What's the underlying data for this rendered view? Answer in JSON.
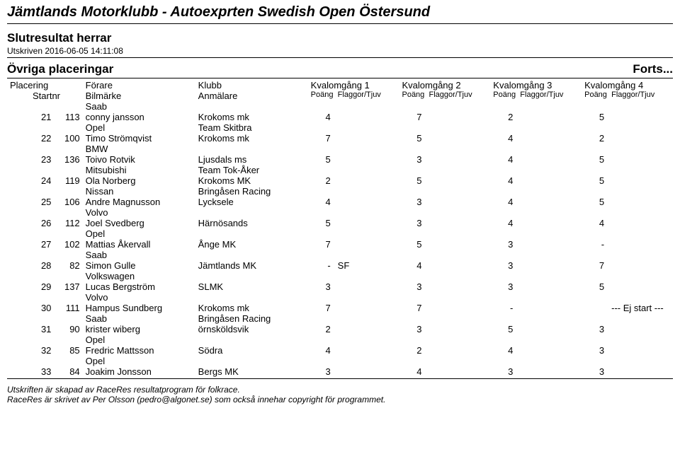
{
  "header": {
    "title": "Jämtlands Motorklubb - Autoexprten Swedish Open Östersund",
    "subtitle": "Slutresultat   herrar",
    "printed": "Utskriven 2016-06-05 14:11:08",
    "section": "Övriga placeringar",
    "forts": "Forts..."
  },
  "columns": {
    "placering": "Placering",
    "startnr": "Startnr",
    "forare": "Förare",
    "bilmarke": "Bilmärke",
    "klubb": "Klubb",
    "anmalare": "Anmälare",
    "kv1": "Kvalomgång 1",
    "kv2": "Kvalomgång 2",
    "kv3": "Kvalomgång 3",
    "kv4": "Kvalomgång 4",
    "poang": "Poäng",
    "flaggor": "Flaggor/Tjuv"
  },
  "pre_row": {
    "bilmarke": "Saab"
  },
  "rows": [
    {
      "plac": "21",
      "startnr": "113",
      "forare": "conny jansson",
      "bilmarke": "Opel",
      "klubb": "Krokoms mk",
      "anmalare": "Team Skitbra",
      "k1p": "4",
      "k1f": "",
      "k2p": "7",
      "k2f": "",
      "k3p": "2",
      "k3f": "",
      "k4p": "5",
      "k4f": ""
    },
    {
      "plac": "22",
      "startnr": "100",
      "forare": "Timo Strömqvist",
      "bilmarke": "BMW",
      "klubb": "Krokoms mk",
      "anmalare": "",
      "k1p": "7",
      "k1f": "",
      "k2p": "5",
      "k2f": "",
      "k3p": "4",
      "k3f": "",
      "k4p": "2",
      "k4f": ""
    },
    {
      "plac": "23",
      "startnr": "136",
      "forare": "Toivo Rotvik",
      "bilmarke": "Mitsubishi",
      "klubb": "Ljusdals ms",
      "anmalare": "Team Tok-Åker",
      "k1p": "5",
      "k1f": "",
      "k2p": "3",
      "k2f": "",
      "k3p": "4",
      "k3f": "",
      "k4p": "5",
      "k4f": ""
    },
    {
      "plac": "24",
      "startnr": "119",
      "forare": "Ola Norberg",
      "bilmarke": "Nissan",
      "klubb": "Krokoms MK",
      "anmalare": "Bringåsen Racing",
      "k1p": "2",
      "k1f": "",
      "k2p": "5",
      "k2f": "",
      "k3p": "4",
      "k3f": "",
      "k4p": "5",
      "k4f": ""
    },
    {
      "plac": "25",
      "startnr": "106",
      "forare": "Andre Magnusson",
      "bilmarke": "Volvo",
      "klubb": "Lycksele",
      "anmalare": "",
      "k1p": "4",
      "k1f": "",
      "k2p": "3",
      "k2f": "",
      "k3p": "4",
      "k3f": "",
      "k4p": "5",
      "k4f": ""
    },
    {
      "plac": "26",
      "startnr": "112",
      "forare": "Joel Svedberg",
      "bilmarke": "Opel",
      "klubb": "Härnösands",
      "anmalare": "",
      "k1p": "5",
      "k1f": "",
      "k2p": "3",
      "k2f": "",
      "k3p": "4",
      "k3f": "",
      "k4p": "4",
      "k4f": ""
    },
    {
      "plac": "27",
      "startnr": "102",
      "forare": "Mattias Åkervall",
      "bilmarke": "Saab",
      "klubb": "Ånge MK",
      "anmalare": "",
      "k1p": "7",
      "k1f": "",
      "k2p": "5",
      "k2f": "",
      "k3p": "3",
      "k3f": "",
      "k4p": "-",
      "k4f": ""
    },
    {
      "plac": "28",
      "startnr": "82",
      "forare": "Simon Gulle",
      "bilmarke": "Volkswagen",
      "klubb": "Jämtlands MK",
      "anmalare": "",
      "k1p": "-",
      "k1f": "SF",
      "k2p": "4",
      "k2f": "",
      "k3p": "3",
      "k3f": "",
      "k4p": "7",
      "k4f": ""
    },
    {
      "plac": "29",
      "startnr": "137",
      "forare": "Lucas Bergström",
      "bilmarke": "Volvo",
      "klubb": "SLMK",
      "anmalare": "",
      "k1p": "3",
      "k1f": "",
      "k2p": "3",
      "k2f": "",
      "k3p": "3",
      "k3f": "",
      "k4p": "5",
      "k4f": ""
    },
    {
      "plac": "30",
      "startnr": "111",
      "forare": "Hampus Sundberg",
      "bilmarke": "Saab",
      "klubb": "Krokoms mk",
      "anmalare": "Bringåsen Racing",
      "k1p": "7",
      "k1f": "",
      "k2p": "7",
      "k2f": "",
      "k3p": "-",
      "k3f": "",
      "k4p": "",
      "k4f": "--- Ej start ---"
    },
    {
      "plac": "31",
      "startnr": "90",
      "forare": "krister wiberg",
      "bilmarke": "Opel",
      "klubb": "örnsköldsvik",
      "anmalare": "",
      "k1p": "2",
      "k1f": "",
      "k2p": "3",
      "k2f": "",
      "k3p": "5",
      "k3f": "",
      "k4p": "3",
      "k4f": ""
    },
    {
      "plac": "32",
      "startnr": "85",
      "forare": "Fredric Mattsson",
      "bilmarke": "Opel",
      "klubb": "Södra",
      "anmalare": "",
      "k1p": "4",
      "k1f": "",
      "k2p": "2",
      "k2f": "",
      "k3p": "4",
      "k3f": "",
      "k4p": "3",
      "k4f": ""
    },
    {
      "plac": "33",
      "startnr": "84",
      "forare": "Joakim Jonsson",
      "bilmarke": "",
      "klubb": "Bergs MK",
      "anmalare": "",
      "k1p": "3",
      "k1f": "",
      "k2p": "4",
      "k2f": "",
      "k3p": "3",
      "k3f": "",
      "k4p": "3",
      "k4f": ""
    }
  ],
  "footer": {
    "line1": "Utskriften är skapad av RaceRes resultatprogram för folkrace.",
    "line2": "RaceRes är skrivet av Per Olsson (pedro@algonet.se) som också innehar copyright för programmet."
  }
}
